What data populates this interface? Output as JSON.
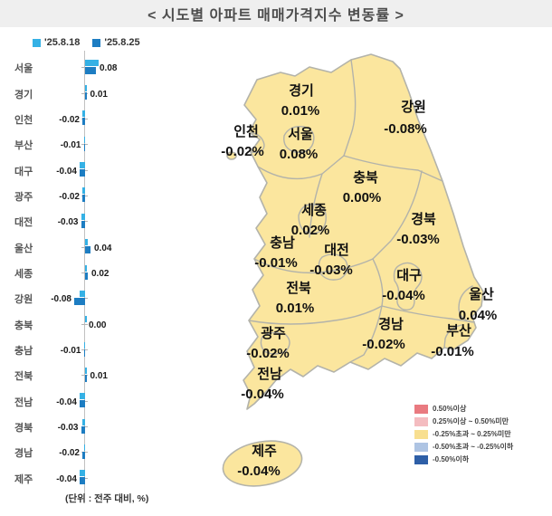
{
  "title": "<  시도별  아파트  매매가격지수  변동률  >",
  "unit_note": "(단위 : 전주 대비, %)",
  "colors": {
    "series1_blue": "#35B1E5",
    "series2_blue": "#1D7DC2",
    "map_fill_yellow": "#FBE69E",
    "map_border": "#B3B3AA",
    "title_band": "#EFEFEF"
  },
  "chart_data": {
    "type": "bar",
    "orientation": "horizontal",
    "title": "시도별 아파트 매매가격지수 변동률",
    "unit": "전주 대비, %",
    "categories": [
      "서울",
      "경기",
      "인천",
      "부산",
      "대구",
      "광주",
      "대전",
      "울산",
      "세종",
      "강원",
      "충북",
      "충남",
      "전북",
      "전남",
      "경북",
      "경남",
      "제주"
    ],
    "series": [
      {
        "name": "'25.8.18",
        "color": "#35B1E5",
        "estimated_from_bar_length": true,
        "values": [
          0.1,
          0.01,
          -0.02,
          -0.01,
          -0.04,
          -0.02,
          -0.03,
          0.02,
          0.01,
          -0.04,
          0.01,
          -0.01,
          0.01,
          -0.04,
          -0.02,
          -0.01,
          -0.04
        ]
      },
      {
        "name": "'25.8.25",
        "color": "#1D7DC2",
        "values": [
          0.08,
          0.01,
          -0.02,
          -0.01,
          -0.04,
          -0.02,
          -0.03,
          0.04,
          0.02,
          -0.08,
          0.0,
          -0.01,
          0.01,
          -0.04,
          -0.03,
          -0.02,
          -0.04
        ]
      }
    ],
    "value_labels_from": "'25.8.25",
    "xlim": [
      -0.12,
      0.12
    ]
  },
  "map": {
    "regions": [
      {
        "name": "경기",
        "value": "0.01%"
      },
      {
        "name": "인천",
        "value": "-0.02%"
      },
      {
        "name": "서울",
        "value": "0.08%"
      },
      {
        "name": "강원",
        "value": "-0.08%"
      },
      {
        "name": "충북",
        "value": "0.00%"
      },
      {
        "name": "세종",
        "value": "0.02%"
      },
      {
        "name": "충남",
        "value": "-0.01%"
      },
      {
        "name": "대전",
        "value": "-0.03%"
      },
      {
        "name": "경북",
        "value": "-0.03%"
      },
      {
        "name": "대구",
        "value": "-0.04%"
      },
      {
        "name": "울산",
        "value": "0.04%"
      },
      {
        "name": "경남",
        "value": "-0.02%"
      },
      {
        "name": "부산",
        "value": "-0.01%"
      },
      {
        "name": "전북",
        "value": "0.01%"
      },
      {
        "name": "광주",
        "value": "-0.02%"
      },
      {
        "name": "전남",
        "value": "-0.04%"
      },
      {
        "name": "제주",
        "value": "-0.04%"
      }
    ]
  },
  "map_legend": {
    "items": [
      {
        "color": "#E97A80",
        "label": "0.50%이상"
      },
      {
        "color": "#F4BCC0",
        "label": "0.25%이상 ~ 0.50%미만"
      },
      {
        "color": "#F8DF90",
        "label": "-0.25%초과 ~ 0.25%미만"
      },
      {
        "color": "#AEC4E3",
        "label": "-0.50%초과 ~ -0.25%이하"
      },
      {
        "color": "#2E5FA7",
        "label": "-0.50%이하"
      }
    ]
  }
}
